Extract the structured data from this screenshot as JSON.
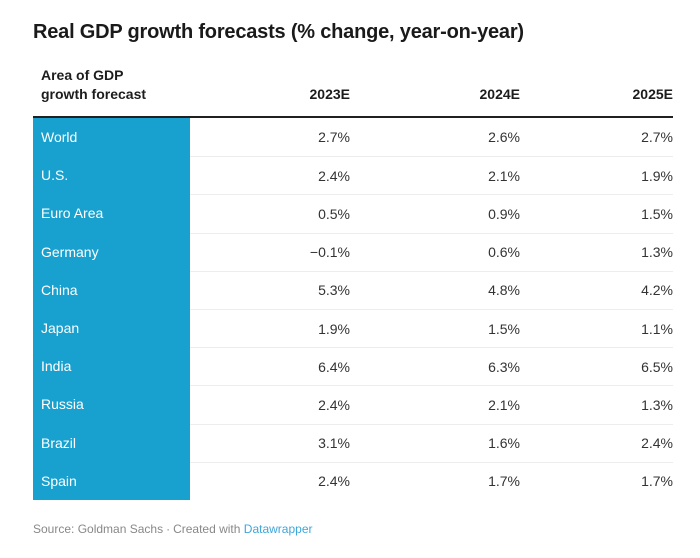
{
  "title": "Real GDP growth forecasts (% change, year-on-year)",
  "table": {
    "area_header": "Area of GDP\ngrowth forecast",
    "columns": [
      "2023E",
      "2024E",
      "2025E"
    ],
    "rows": [
      {
        "area": "World",
        "values": [
          "2.7%",
          "2.6%",
          "2.7%"
        ]
      },
      {
        "area": "U.S.",
        "values": [
          "2.4%",
          "2.1%",
          "1.9%"
        ]
      },
      {
        "area": "Euro Area",
        "values": [
          "0.5%",
          "0.9%",
          "1.5%"
        ]
      },
      {
        "area": "Germany",
        "values": [
          "−0.1%",
          "0.6%",
          "1.3%"
        ]
      },
      {
        "area": "China",
        "values": [
          "5.3%",
          "4.8%",
          "4.2%"
        ]
      },
      {
        "area": "Japan",
        "values": [
          "1.9%",
          "1.5%",
          "1.1%"
        ]
      },
      {
        "area": "India",
        "values": [
          "6.4%",
          "6.3%",
          "6.5%"
        ]
      },
      {
        "area": "Russia",
        "values": [
          "2.4%",
          "2.1%",
          "1.3%"
        ]
      },
      {
        "area": "Brazil",
        "values": [
          "3.1%",
          "1.6%",
          "2.4%"
        ]
      },
      {
        "area": "Spain",
        "values": [
          "2.4%",
          "1.7%",
          "1.7%"
        ]
      }
    ]
  },
  "footer": {
    "source": "Source: Goldman Sachs",
    "separator": "·",
    "created_with": "Created with",
    "link_label": "Datawrapper"
  },
  "colors": {
    "accent": "#18a0ce",
    "link": "#3da6dc",
    "header_border": "#202020",
    "row_divider": "#ededed",
    "title_text": "#1a1a1a",
    "value_text": "#333333",
    "footer_text": "#888888"
  },
  "chart_data": {
    "type": "table",
    "title": "Real GDP growth forecasts (% change, year-on-year)",
    "row_header": "Area of GDP growth forecast",
    "columns": [
      "2023E",
      "2024E",
      "2025E"
    ],
    "rows": [
      "World",
      "U.S.",
      "Euro Area",
      "Germany",
      "China",
      "Japan",
      "India",
      "Russia",
      "Brazil",
      "Spain"
    ],
    "values_pct": [
      [
        2.7,
        2.6,
        2.7
      ],
      [
        2.4,
        2.1,
        1.9
      ],
      [
        0.5,
        0.9,
        1.5
      ],
      [
        -0.1,
        0.6,
        1.3
      ],
      [
        5.3,
        4.8,
        4.2
      ],
      [
        1.9,
        1.5,
        1.1
      ],
      [
        6.4,
        6.3,
        6.5
      ],
      [
        2.4,
        2.1,
        1.3
      ],
      [
        3.1,
        1.6,
        2.4
      ],
      [
        2.4,
        1.7,
        1.7
      ]
    ],
    "source": "Goldman Sachs"
  }
}
